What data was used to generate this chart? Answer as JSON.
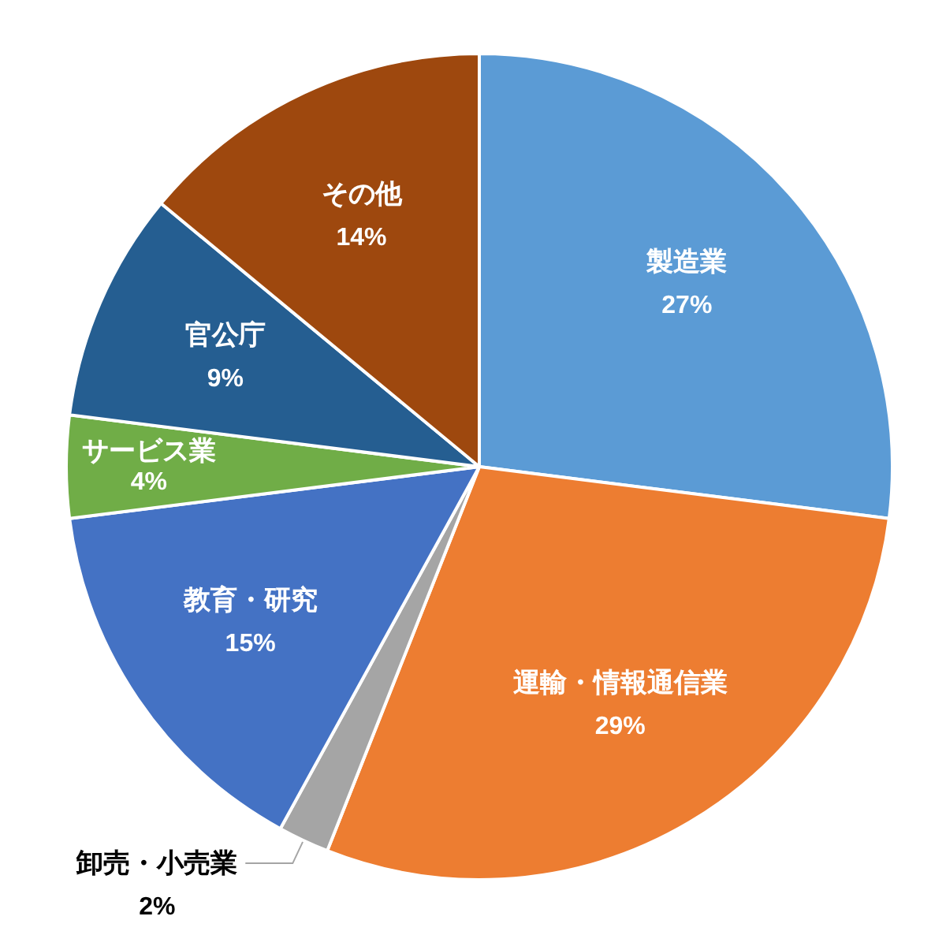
{
  "chart_data": {
    "type": "pie",
    "categories": [
      "製造業",
      "運輸・情報通信業",
      "卸売・小売業",
      "教育・研究",
      "サービス業",
      "官公庁",
      "その他"
    ],
    "values": [
      27,
      29,
      2,
      15,
      4,
      9,
      14
    ],
    "colors": [
      "#5b9bd5",
      "#ed7d31",
      "#a5a5a5",
      "#4472c4",
      "#70ad47",
      "#255e91",
      "#9e480e"
    ],
    "value_labels": [
      "27%",
      "29%",
      "2%",
      "15%",
      "4%",
      "9%",
      "14%"
    ]
  }
}
